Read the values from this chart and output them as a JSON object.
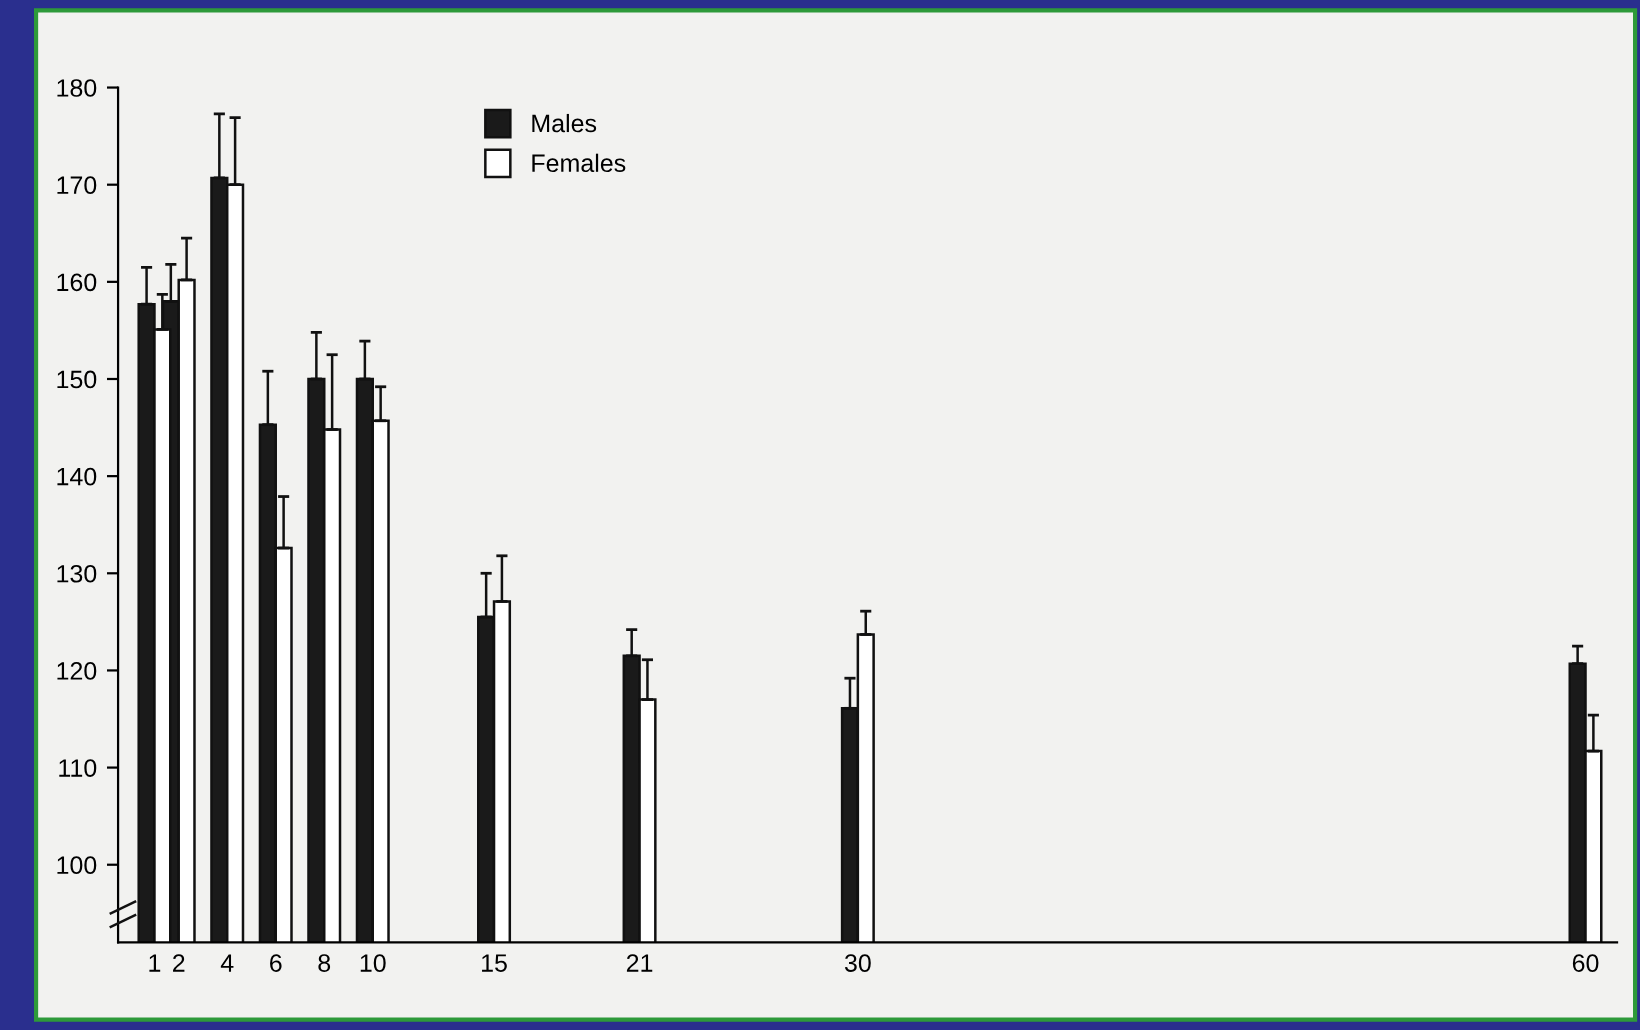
{
  "chart_data": {
    "type": "bar",
    "x": [
      1,
      2,
      4,
      6,
      8,
      10,
      15,
      21,
      30,
      60
    ],
    "series": [
      {
        "name": "Males",
        "color": "#1a1a1a",
        "values": [
          157.7,
          158.0,
          170.7,
          145.3,
          150.0,
          150.0,
          125.5,
          121.5,
          116.1,
          120.7
        ],
        "errors": [
          [
            157.7,
            161.5
          ],
          [
            158.0,
            161.8
          ],
          [
            170.7,
            177.3
          ],
          [
            145.3,
            150.8
          ],
          [
            150.0,
            154.8
          ],
          [
            150.0,
            153.9
          ],
          [
            125.5,
            130.0
          ],
          [
            121.5,
            124.2
          ],
          [
            116.1,
            119.2
          ],
          [
            120.7,
            122.5
          ]
        ]
      },
      {
        "name": "Females",
        "color": "#ffffff",
        "values": [
          155.1,
          160.2,
          170.0,
          132.6,
          144.8,
          145.7,
          127.1,
          117.0,
          123.7,
          111.7
        ],
        "errors": [
          [
            155.1,
            158.7
          ],
          [
            160.2,
            164.5
          ],
          [
            170.0,
            176.9
          ],
          [
            132.6,
            137.9
          ],
          [
            144.8,
            152.5
          ],
          [
            145.7,
            149.2
          ],
          [
            127.1,
            131.8
          ],
          [
            117.0,
            121.1
          ],
          [
            123.7,
            126.1
          ],
          [
            111.7,
            115.4
          ]
        ]
      }
    ],
    "xlim": [
      -0.5,
      61.3
    ],
    "xticks": [
      1,
      2,
      4,
      6,
      8,
      10,
      15,
      21,
      30,
      60
    ],
    "ylim": [
      92,
      180
    ],
    "yticks": [
      100,
      110,
      120,
      130,
      140,
      150,
      160,
      170,
      180
    ],
    "legend": "top left",
    "grid": false
  }
}
